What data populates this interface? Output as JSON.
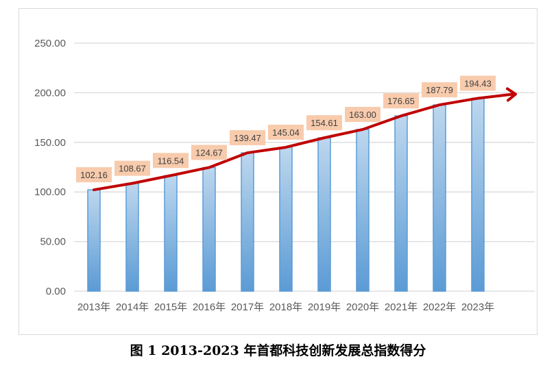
{
  "chart_data": {
    "type": "bar",
    "title": "",
    "caption": "图 1 2013-2023 年首都科技创新发展总指数得分",
    "categories": [
      "2013年",
      "2014年",
      "2015年",
      "2016年",
      "2017年",
      "2018年",
      "2019年",
      "2020年",
      "2021年",
      "2022年",
      "2023年"
    ],
    "values": [
      102.16,
      108.67,
      116.54,
      124.67,
      139.47,
      145.04,
      154.61,
      163.0,
      176.65,
      187.79,
      194.43
    ],
    "value_labels": [
      "102.16",
      "108.67",
      "116.54",
      "124.67",
      "139.47",
      "145.04",
      "154.61",
      "163.00",
      "176.65",
      "187.79",
      "194.43"
    ],
    "yticks": [
      "0.00",
      "50.00",
      "100.00",
      "150.00",
      "200.00",
      "250.00"
    ],
    "ylim": [
      0,
      250
    ],
    "grid": true,
    "trend_arrow": true,
    "colors": {
      "bar": "#5b9bd5",
      "bar_light": "#bdd7ee",
      "line": "#c00000",
      "label_bg": "#f8cbad",
      "grid": "#d9d9d9",
      "text": "#595959"
    }
  }
}
